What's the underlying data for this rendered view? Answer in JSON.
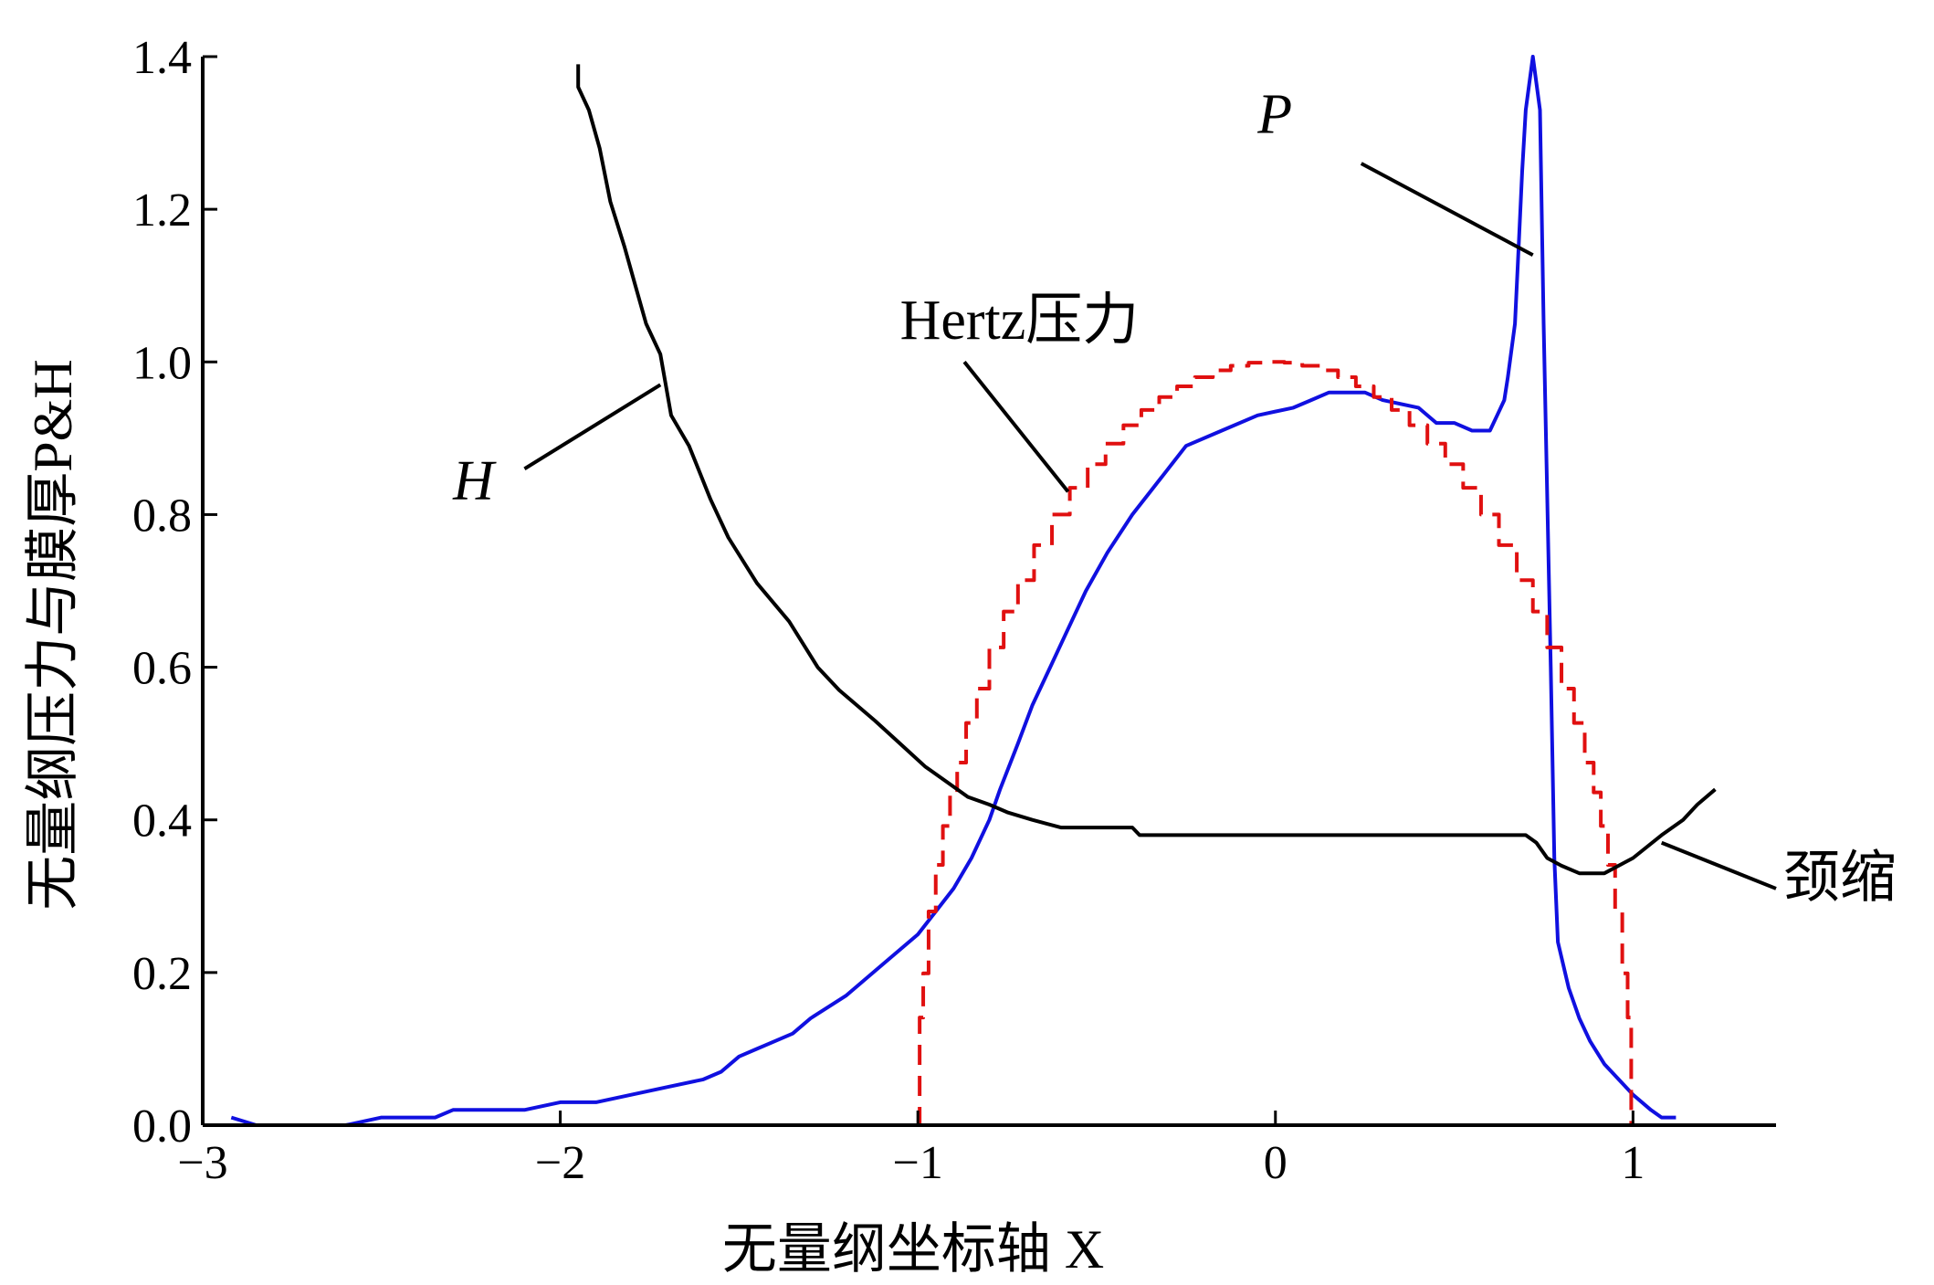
{
  "chart_data": {
    "type": "line",
    "title": "",
    "xlabel": "无量纲坐标轴 X",
    "ylabel": "无量纲压力与膜厚P&H",
    "xlim": [
      -3,
      1.4
    ],
    "ylim": [
      0,
      1.4
    ],
    "xticks": [
      -3,
      -2,
      -1,
      0,
      1
    ],
    "xtick_labels": [
      "−3",
      "−2",
      "−1",
      "0",
      "1"
    ],
    "yticks": [
      0,
      0.2,
      0.4,
      0.6,
      0.8,
      1.0,
      1.2,
      1.4
    ],
    "ytick_labels": [
      "0.0",
      "0.2",
      "0.4",
      "0.6",
      "0.8",
      "1.0",
      "1.2",
      "1.4"
    ],
    "grid": false,
    "legend": "none",
    "series": [
      {
        "key": "P",
        "color": "#1010e0",
        "style": "solid",
        "points": [
          [
            -2.92,
            0.01
          ],
          [
            -2.85,
            0.0
          ],
          [
            -2.6,
            0.0
          ],
          [
            -2.5,
            0.01
          ],
          [
            -2.35,
            0.01
          ],
          [
            -2.3,
            0.02
          ],
          [
            -2.1,
            0.02
          ],
          [
            -2.0,
            0.03
          ],
          [
            -1.9,
            0.03
          ],
          [
            -1.8,
            0.04
          ],
          [
            -1.7,
            0.05
          ],
          [
            -1.6,
            0.06
          ],
          [
            -1.55,
            0.07
          ],
          [
            -1.5,
            0.09
          ],
          [
            -1.45,
            0.1
          ],
          [
            -1.35,
            0.12
          ],
          [
            -1.3,
            0.14
          ],
          [
            -1.2,
            0.17
          ],
          [
            -1.1,
            0.21
          ],
          [
            -1.0,
            0.25
          ],
          [
            -0.95,
            0.28
          ],
          [
            -0.9,
            0.31
          ],
          [
            -0.85,
            0.35
          ],
          [
            -0.8,
            0.4
          ],
          [
            -0.77,
            0.44
          ],
          [
            -0.72,
            0.5
          ],
          [
            -0.68,
            0.55
          ],
          [
            -0.63,
            0.6
          ],
          [
            -0.58,
            0.65
          ],
          [
            -0.53,
            0.7
          ],
          [
            -0.47,
            0.75
          ],
          [
            -0.4,
            0.8
          ],
          [
            -0.35,
            0.83
          ],
          [
            -0.3,
            0.86
          ],
          [
            -0.25,
            0.89
          ],
          [
            -0.15,
            0.91
          ],
          [
            -0.05,
            0.93
          ],
          [
            0.05,
            0.94
          ],
          [
            0.1,
            0.95
          ],
          [
            0.15,
            0.96
          ],
          [
            0.25,
            0.96
          ],
          [
            0.3,
            0.95
          ],
          [
            0.4,
            0.94
          ],
          [
            0.45,
            0.92
          ],
          [
            0.5,
            0.92
          ],
          [
            0.55,
            0.91
          ],
          [
            0.6,
            0.91
          ],
          [
            0.62,
            0.93
          ],
          [
            0.64,
            0.95
          ],
          [
            0.65,
            0.98
          ],
          [
            0.67,
            1.05
          ],
          [
            0.68,
            1.15
          ],
          [
            0.69,
            1.25
          ],
          [
            0.7,
            1.33
          ],
          [
            0.72,
            1.4
          ],
          [
            0.74,
            1.33
          ],
          [
            0.75,
            1.05
          ],
          [
            0.77,
            0.6
          ],
          [
            0.78,
            0.35
          ],
          [
            0.79,
            0.24
          ],
          [
            0.82,
            0.18
          ],
          [
            0.85,
            0.14
          ],
          [
            0.88,
            0.11
          ],
          [
            0.92,
            0.08
          ],
          [
            0.96,
            0.06
          ],
          [
            1.0,
            0.04
          ],
          [
            1.05,
            0.02
          ],
          [
            1.08,
            0.01
          ],
          [
            1.12,
            0.01
          ]
        ]
      },
      {
        "key": "Hertz",
        "color": "#e01010",
        "style": "dashed",
        "points": [
          [
            -1.0,
            0.0
          ],
          [
            -0.99,
            0.141
          ],
          [
            -0.98,
            0.199
          ],
          [
            -0.96,
            0.28
          ],
          [
            -0.94,
            0.341
          ],
          [
            -0.92,
            0.392
          ],
          [
            -0.9,
            0.436
          ],
          [
            -0.88,
            0.475
          ],
          [
            -0.85,
            0.527
          ],
          [
            -0.82,
            0.572
          ],
          [
            -0.78,
            0.626
          ],
          [
            -0.74,
            0.673
          ],
          [
            -0.7,
            0.714
          ],
          [
            -0.65,
            0.76
          ],
          [
            -0.6,
            0.8
          ],
          [
            -0.55,
            0.835
          ],
          [
            -0.5,
            0.866
          ],
          [
            -0.45,
            0.893
          ],
          [
            -0.4,
            0.917
          ],
          [
            -0.35,
            0.937
          ],
          [
            -0.3,
            0.954
          ],
          [
            -0.25,
            0.968
          ],
          [
            -0.2,
            0.98
          ],
          [
            -0.15,
            0.989
          ],
          [
            -0.1,
            0.995
          ],
          [
            -0.05,
            0.999
          ],
          [
            0.0,
            1.0
          ],
          [
            0.05,
            0.999
          ],
          [
            0.1,
            0.995
          ],
          [
            0.15,
            0.989
          ],
          [
            0.2,
            0.98
          ],
          [
            0.25,
            0.968
          ],
          [
            0.3,
            0.954
          ],
          [
            0.35,
            0.937
          ],
          [
            0.4,
            0.917
          ],
          [
            0.45,
            0.893
          ],
          [
            0.5,
            0.866
          ],
          [
            0.55,
            0.835
          ],
          [
            0.6,
            0.8
          ],
          [
            0.65,
            0.76
          ],
          [
            0.7,
            0.714
          ],
          [
            0.74,
            0.673
          ],
          [
            0.78,
            0.626
          ],
          [
            0.82,
            0.572
          ],
          [
            0.85,
            0.527
          ],
          [
            0.88,
            0.475
          ],
          [
            0.9,
            0.436
          ],
          [
            0.92,
            0.392
          ],
          [
            0.94,
            0.341
          ],
          [
            0.96,
            0.28
          ],
          [
            0.98,
            0.199
          ],
          [
            0.99,
            0.141
          ],
          [
            1.0,
            0.0
          ]
        ]
      },
      {
        "key": "H",
        "color": "#000000",
        "style": "solid",
        "points": [
          [
            -1.95,
            1.39
          ],
          [
            -1.95,
            1.36
          ],
          [
            -1.92,
            1.33
          ],
          [
            -1.89,
            1.28
          ],
          [
            -1.86,
            1.21
          ],
          [
            -1.82,
            1.15
          ],
          [
            -1.79,
            1.1
          ],
          [
            -1.76,
            1.05
          ],
          [
            -1.72,
            1.01
          ],
          [
            -1.69,
            0.93
          ],
          [
            -1.64,
            0.89
          ],
          [
            -1.58,
            0.82
          ],
          [
            -1.53,
            0.77
          ],
          [
            -1.45,
            0.71
          ],
          [
            -1.36,
            0.66
          ],
          [
            -1.28,
            0.6
          ],
          [
            -1.22,
            0.57
          ],
          [
            -1.17,
            0.55
          ],
          [
            -1.12,
            0.53
          ],
          [
            -1.05,
            0.5
          ],
          [
            -0.98,
            0.47
          ],
          [
            -0.92,
            0.45
          ],
          [
            -0.86,
            0.43
          ],
          [
            -0.8,
            0.42
          ],
          [
            -0.75,
            0.41
          ],
          [
            -0.68,
            0.4
          ],
          [
            -0.6,
            0.39
          ],
          [
            -0.4,
            0.39
          ],
          [
            -0.38,
            0.38
          ],
          [
            -0.2,
            0.38
          ],
          [
            0.7,
            0.38
          ],
          [
            0.73,
            0.37
          ],
          [
            0.76,
            0.35
          ],
          [
            0.8,
            0.34
          ],
          [
            0.85,
            0.33
          ],
          [
            0.92,
            0.33
          ],
          [
            1.0,
            0.35
          ],
          [
            1.08,
            0.38
          ],
          [
            1.14,
            0.4
          ],
          [
            1.18,
            0.42
          ],
          [
            1.23,
            0.44
          ]
        ]
      }
    ],
    "annotations": [
      {
        "text": "Hertz压力",
        "italic": false,
        "label_at": [
          -1.05,
          1.03
        ],
        "line_from": [
          -0.87,
          1.0
        ],
        "line_to": [
          -0.58,
          0.83
        ]
      },
      {
        "text": "P",
        "italic": true,
        "label_at": [
          -0.05,
          1.3
        ],
        "line_from": [
          0.24,
          1.26
        ],
        "line_to": [
          0.72,
          1.14
        ]
      },
      {
        "text": "H",
        "italic": true,
        "label_at": [
          -2.3,
          0.82
        ],
        "line_from": [
          -2.1,
          0.86
        ],
        "line_to": [
          -1.72,
          0.97
        ]
      },
      {
        "text": "颈缩",
        "italic": false,
        "label_at": [
          1.42,
          0.3
        ],
        "line_from": [
          1.08,
          0.37
        ],
        "line_to": [
          1.4,
          0.31
        ]
      }
    ]
  }
}
